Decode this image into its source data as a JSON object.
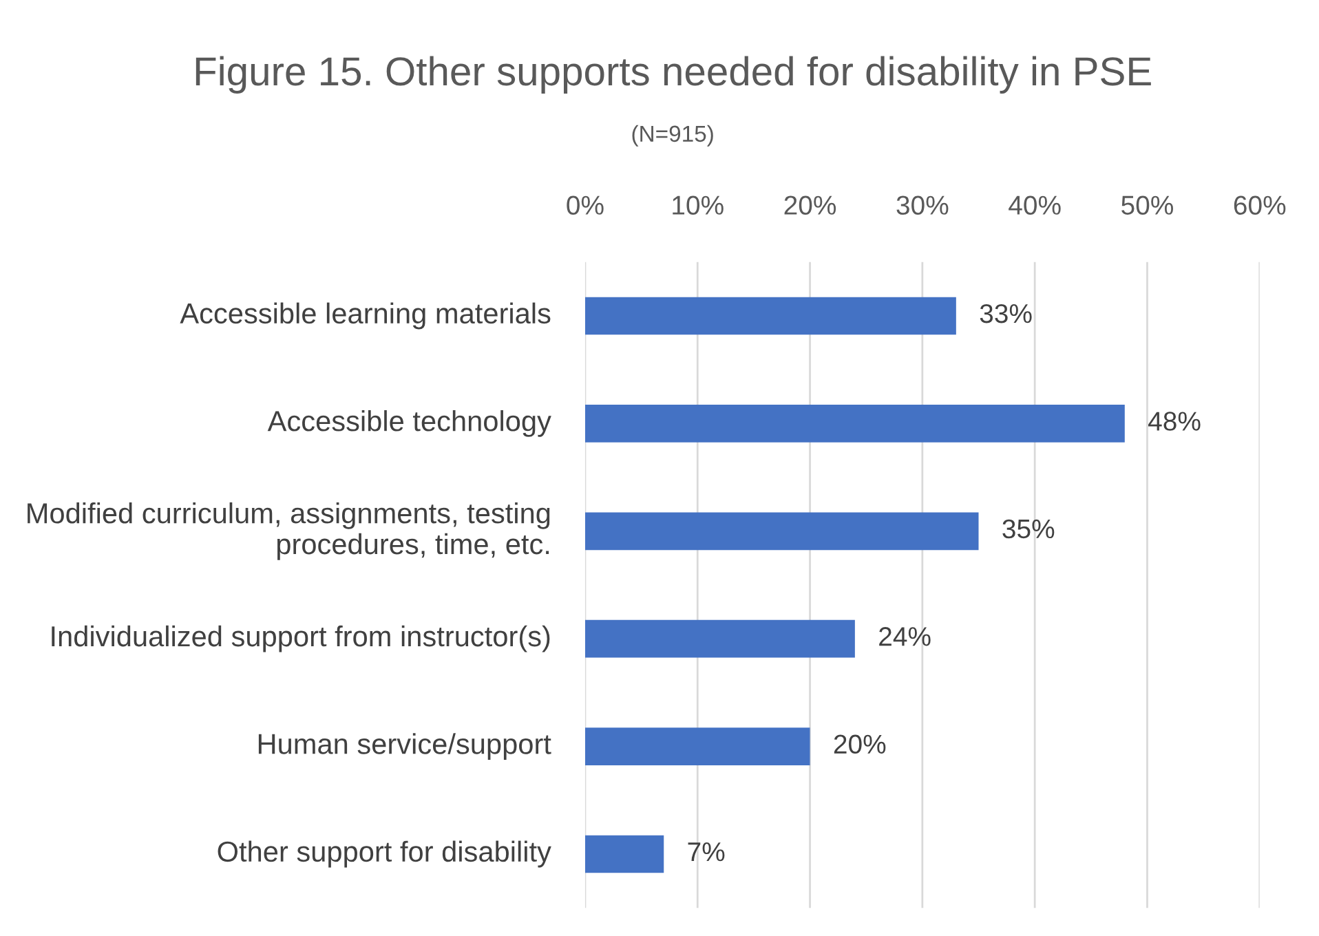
{
  "chart_data": {
    "type": "bar",
    "orientation": "horizontal",
    "title": "Figure 15. Other supports needed for disability in PSE",
    "subtitle": "(N=915)",
    "categories": [
      "Accessible learning materials",
      "Accessible technology",
      "Modified curriculum, assignments, testing procedures, time, etc.",
      "Individualized support from instructor(s)",
      "Human service/support",
      "Other support for disability"
    ],
    "values": [
      33,
      48,
      35,
      24,
      20,
      7
    ],
    "value_labels": [
      "33%",
      "48%",
      "35%",
      "24%",
      "20%",
      "7%"
    ],
    "color": "#4472c4",
    "xlim": [
      0,
      60
    ],
    "xticks": [
      {
        "value": 0,
        "label": "0%"
      },
      {
        "value": 10,
        "label": "10%"
      },
      {
        "value": 20,
        "label": "20%"
      },
      {
        "value": 30,
        "label": "30%"
      },
      {
        "value": 40,
        "label": "40%"
      },
      {
        "value": 50,
        "label": "50%"
      },
      {
        "value": 60,
        "label": "60%"
      }
    ],
    "grid": "x"
  }
}
